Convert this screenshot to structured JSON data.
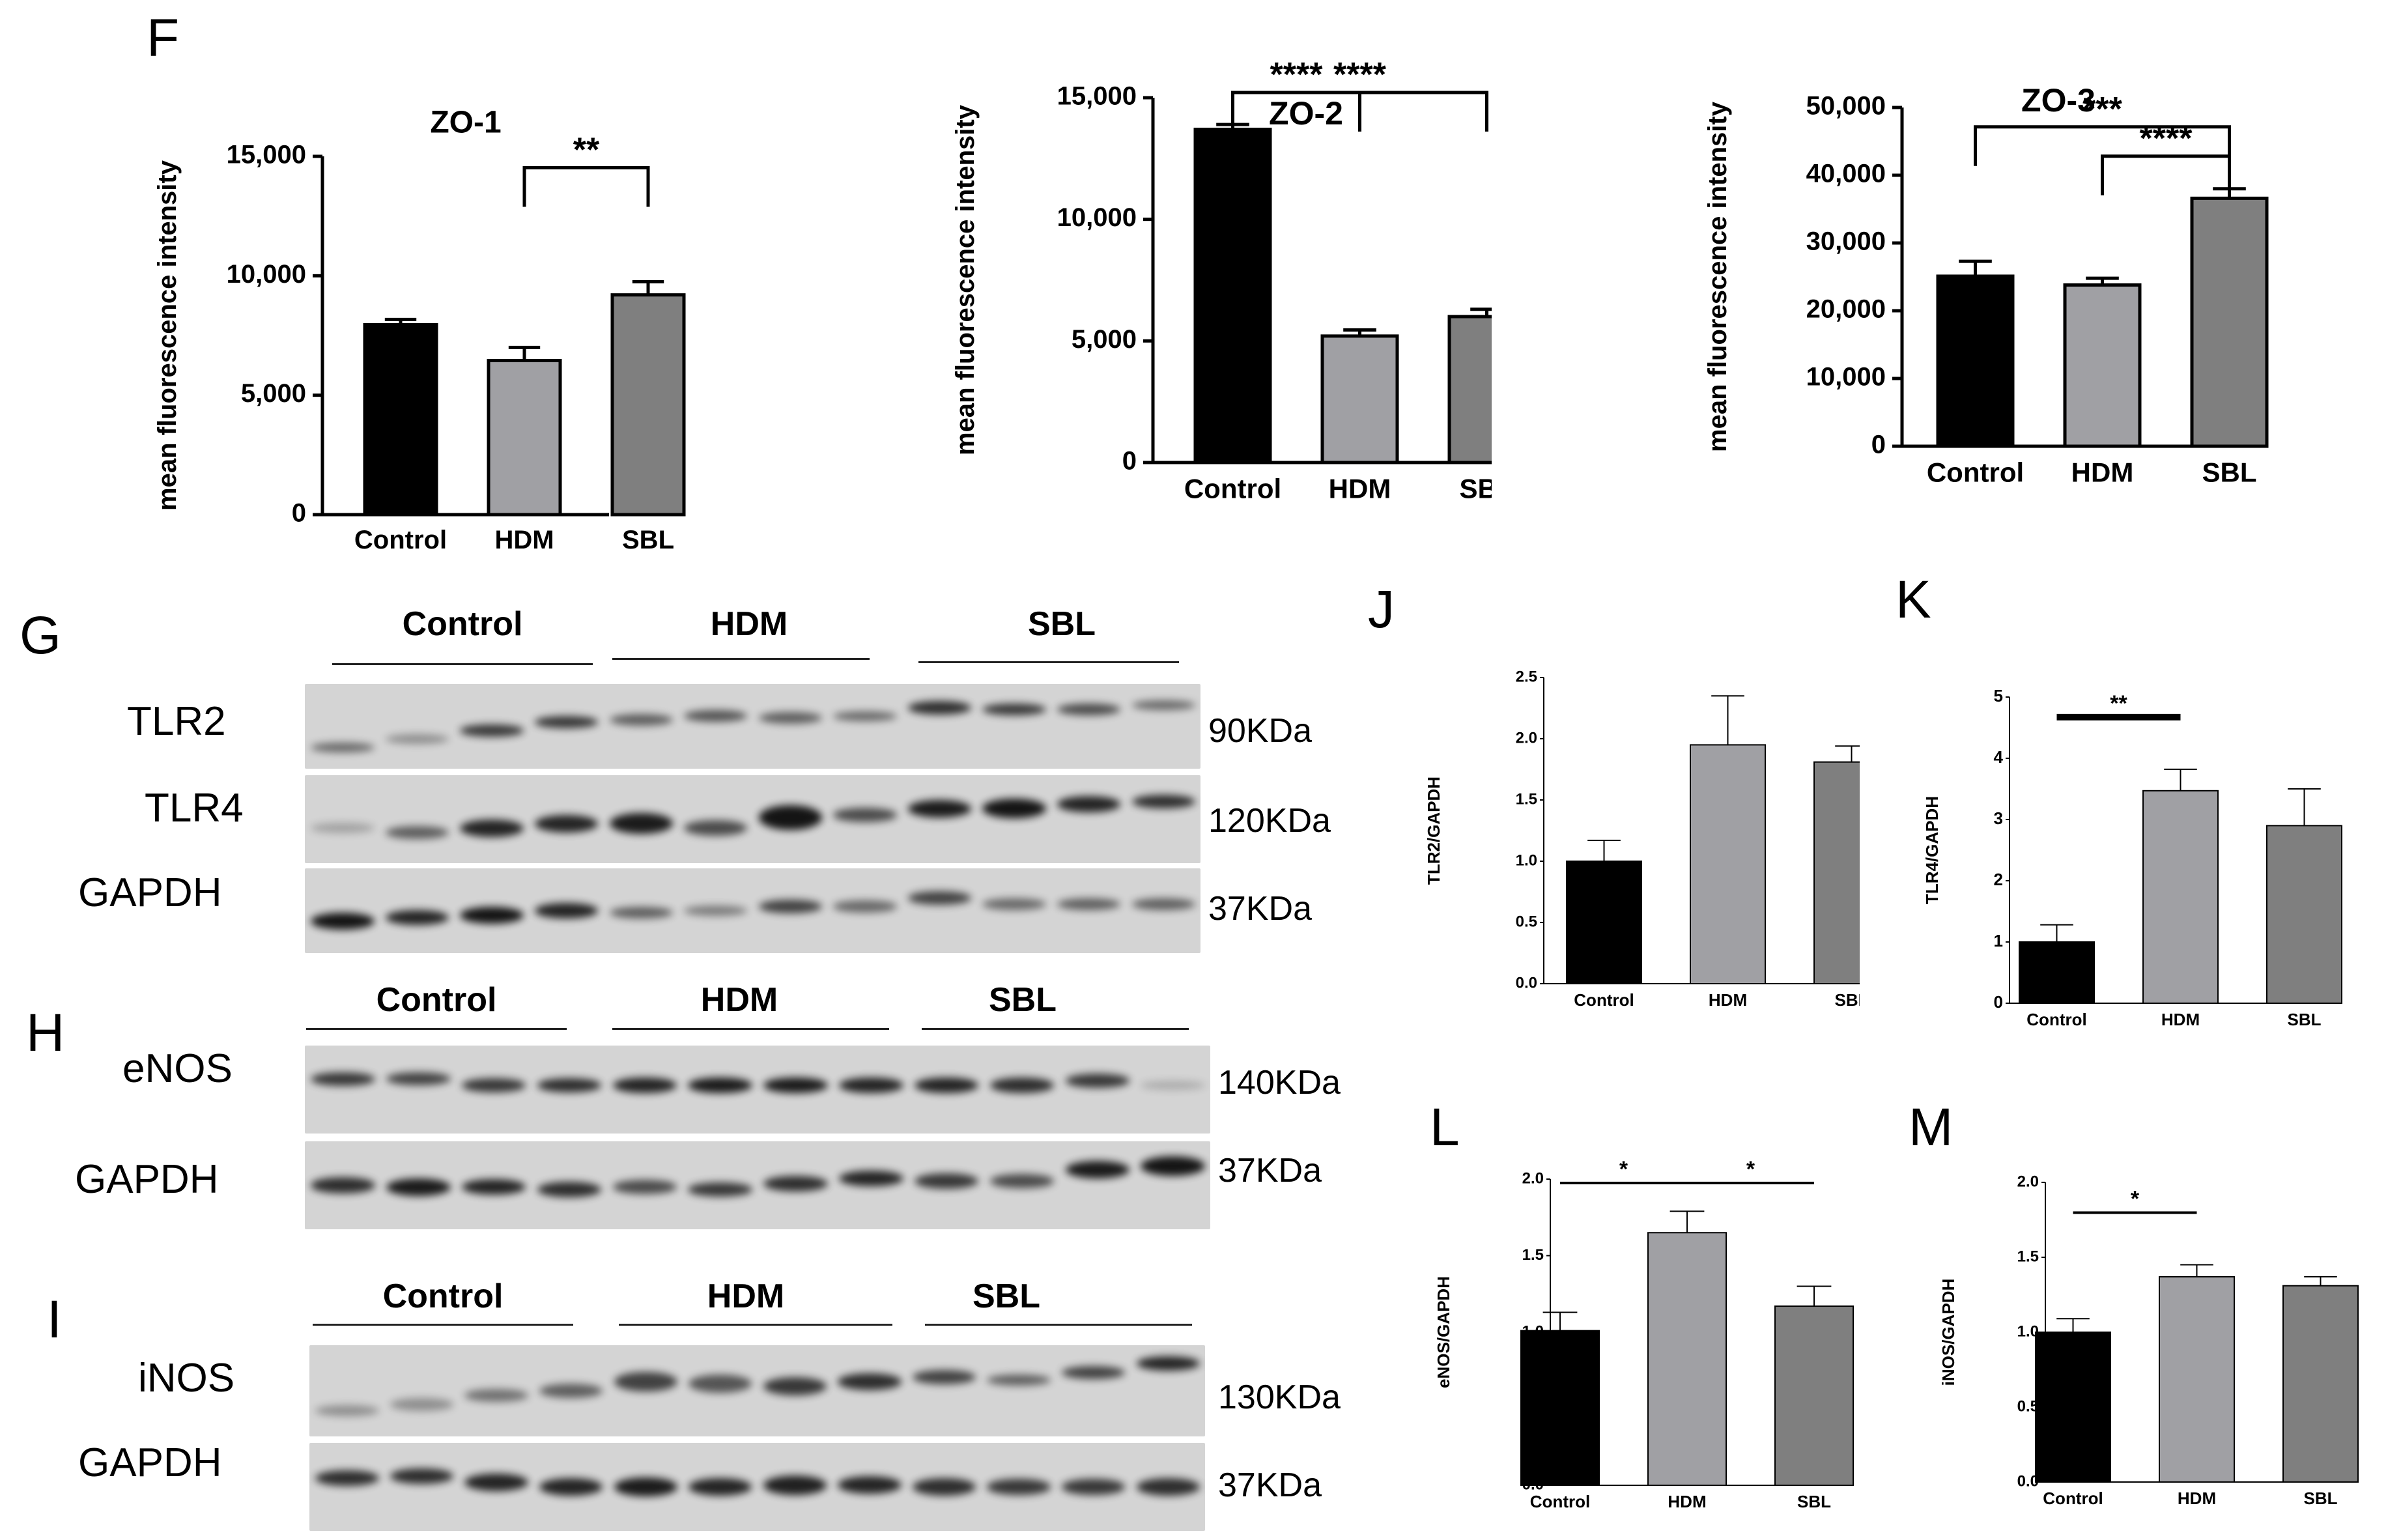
{
  "panels": {
    "F": "F",
    "G": "G",
    "H": "H",
    "I": "I",
    "J": "J",
    "K": "K",
    "L": "L",
    "M": "M"
  },
  "colors": {
    "control": "#000000",
    "hdm": "#a0a0a4",
    "sbl": "#7f7f7f"
  },
  "chart_data": [
    {
      "id": "zo1",
      "type": "bar",
      "title": "ZO-1",
      "ylabel": "mean fluorescence intensity",
      "categories": [
        "Control",
        "HDM",
        "SBL"
      ],
      "values": [
        7950,
        6450,
        9200
      ],
      "errors": [
        220,
        550,
        550
      ],
      "ylim": [
        0,
        15000
      ],
      "yticks": [
        0,
        5000,
        10000,
        15000
      ],
      "yticklabels": [
        "0",
        "5,000",
        "10,000",
        "15,000"
      ],
      "sig": [
        {
          "from": 1,
          "to": 2,
          "label": "**"
        }
      ]
    },
    {
      "id": "zo2",
      "type": "bar",
      "title": "ZO-2",
      "ylabel": "mean fluorescence intensity",
      "categories": [
        "Control",
        "HDM",
        "SBL"
      ],
      "values": [
        13700,
        5200,
        6000
      ],
      "errors": [
        200,
        250,
        300
      ],
      "ylim": [
        0,
        15000
      ],
      "yticks": [
        0,
        5000,
        10000,
        15000
      ],
      "yticklabels": [
        "0",
        "5,000",
        "10,000",
        "15,000"
      ],
      "sig": [
        {
          "from": 0,
          "to": 1,
          "label": "****"
        },
        {
          "from": 0,
          "to": 2,
          "label": "****"
        }
      ]
    },
    {
      "id": "zo3",
      "type": "bar",
      "title": "ZO-3",
      "ylabel": "mean fluorescence intensity",
      "categories": [
        "Control",
        "HDM",
        "SBL"
      ],
      "values": [
        25100,
        23800,
        36600
      ],
      "errors": [
        2200,
        1000,
        1400
      ],
      "ylim": [
        0,
        50000
      ],
      "yticks": [
        0,
        10000,
        20000,
        30000,
        40000,
        50000
      ],
      "yticklabels": [
        "0",
        "10,000",
        "20,000",
        "30,000",
        "40,000",
        "50,000"
      ],
      "sig": [
        {
          "from": 1,
          "to": 2,
          "label": "****"
        },
        {
          "from": 0,
          "to": 2,
          "label": "***"
        }
      ]
    },
    {
      "id": "tlr2",
      "type": "bar",
      "title": "",
      "ylabel": "TLR2/GAPDH",
      "categories": [
        "Control",
        "HDM",
        "SBL"
      ],
      "values": [
        1.0,
        1.95,
        1.81
      ],
      "errors": [
        0.17,
        0.4,
        0.13
      ],
      "ylim": [
        0,
        2.5
      ],
      "yticks": [
        0,
        0.5,
        1,
        1.5,
        2,
        2.5
      ],
      "yticklabels": [
        "0.0",
        "0.5",
        "1.0",
        "1.5",
        "2.0",
        "2.5"
      ],
      "sig": []
    },
    {
      "id": "tlr4",
      "type": "bar",
      "title": "",
      "ylabel": "TLR4/GAPDH",
      "categories": [
        "Control",
        "HDM",
        "SBL"
      ],
      "values": [
        1.0,
        3.47,
        2.9
      ],
      "errors": [
        0.28,
        0.35,
        0.6
      ],
      "ylim": [
        0,
        5
      ],
      "yticks": [
        0,
        1,
        2,
        3,
        4,
        5
      ],
      "yticklabels": [
        "0",
        "1",
        "2",
        "3",
        "4",
        "5"
      ],
      "sig": [
        {
          "from": 0,
          "to": 1,
          "label": "**"
        }
      ]
    },
    {
      "id": "enos",
      "type": "bar",
      "title": "",
      "ylabel": "eNOS/GAPDH",
      "categories": [
        "Control",
        "HDM",
        "SBL"
      ],
      "values": [
        1.01,
        1.65,
        1.17
      ],
      "errors": [
        0.12,
        0.14,
        0.13
      ],
      "ylim": [
        0,
        2.0
      ],
      "yticks": [
        0,
        0.5,
        1,
        1.5,
        2
      ],
      "yticklabels": [
        "0.0",
        "0.5",
        "1.0",
        "1.5",
        "2.0"
      ],
      "sig": [
        {
          "from": 0,
          "to": 1,
          "label": "*"
        },
        {
          "from": 1,
          "to": 2,
          "label": "*"
        }
      ]
    },
    {
      "id": "inos",
      "type": "bar",
      "title": "",
      "ylabel": "iNOS/GAPDH",
      "categories": [
        "Control",
        "HDM",
        "SBL"
      ],
      "values": [
        1.0,
        1.37,
        1.31
      ],
      "errors": [
        0.09,
        0.08,
        0.06
      ],
      "ylim": [
        0,
        2.0
      ],
      "yticks": [
        0,
        0.5,
        1,
        1.5,
        2
      ],
      "yticklabels": [
        "0.0",
        "0.5",
        "1.0",
        "1.5",
        "2.0"
      ],
      "sig": [
        {
          "from": 0,
          "to": 1,
          "label": "*"
        }
      ]
    }
  ],
  "blots": [
    {
      "id": "G",
      "groups": [
        "Control",
        "HDM",
        "SBL"
      ],
      "rows": [
        {
          "label": "TLR2",
          "kda": "90KDa"
        },
        {
          "label": "TLR4",
          "kda": "120KDa"
        },
        {
          "label": "GAPDH",
          "kda": "37KDa"
        }
      ]
    },
    {
      "id": "H",
      "groups": [
        "Control",
        "HDM",
        "SBL"
      ],
      "rows": [
        {
          "label": "eNOS",
          "kda": "140KDa"
        },
        {
          "label": "GAPDH",
          "kda": "37KDa"
        }
      ]
    },
    {
      "id": "I",
      "groups": [
        "Control",
        "HDM",
        "SBL"
      ],
      "rows": [
        {
          "label": "iNOS",
          "kda": "130KDa"
        },
        {
          "label": "GAPDH",
          "kda": "37KDa"
        }
      ]
    }
  ]
}
